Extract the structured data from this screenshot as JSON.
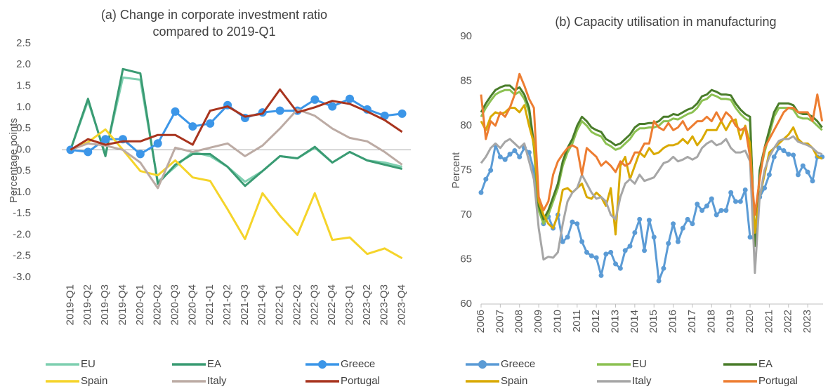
{
  "chart_data": [
    {
      "type": "line",
      "title": [
        "(a) Change in corporate investment ratio",
        "compared to 2019-Q1"
      ],
      "y_label": "Percentage points",
      "categories": [
        "2019-Q1",
        "2019-Q2",
        "2019-Q3",
        "2019-Q4",
        "2020-Q1",
        "2020-Q2",
        "2020-Q3",
        "2020-Q4",
        "2021-Q1",
        "2021-Q2",
        "2021-Q3",
        "2021-Q4",
        "2022-Q1",
        "2022-Q2",
        "2022-Q3",
        "2022-Q4",
        "2023-Q1",
        "2023-Q2",
        "2023-Q3",
        "2023-Q4"
      ],
      "ylim": [
        -3,
        2.5
      ],
      "yticks": [
        {
          "value": -3,
          "label": "-3.0"
        },
        -2.5,
        {
          "value": -2,
          "label": "-2.0"
        },
        -1.5,
        {
          "value": -1,
          "label": "-1.0"
        },
        -0.5,
        {
          "value": 0,
          "label": "0.0"
        },
        0.5,
        {
          "value": 1,
          "label": "1.0"
        },
        1.5,
        {
          "value": 2,
          "label": "2.0"
        },
        2.5
      ],
      "series": [
        {
          "name": "EU",
          "color": "#7fcfb0",
          "values": [
            0,
            1.15,
            -0.1,
            1.7,
            1.65,
            -0.75,
            -0.4,
            -0.05,
            -0.15,
            -0.4,
            -0.75,
            -0.5,
            -0.15,
            -0.2,
            0.05,
            -0.3,
            -0.05,
            -0.25,
            -0.3,
            -0.4
          ]
        },
        {
          "name": "EA",
          "color": "#3a9b73",
          "values": [
            0,
            1.2,
            -0.15,
            1.9,
            1.8,
            -0.8,
            -0.35,
            -0.1,
            -0.1,
            -0.4,
            -0.85,
            -0.5,
            -0.15,
            -0.2,
            0.07,
            -0.3,
            -0.05,
            -0.25,
            -0.35,
            -0.45
          ]
        },
        {
          "name": "Greece",
          "color": "#3c96e8",
          "marker": true,
          "values": [
            0,
            -0.05,
            0.25,
            0.25,
            -0.1,
            0.15,
            0.9,
            0.55,
            0.62,
            1.05,
            0.75,
            0.88,
            0.92,
            0.92,
            1.18,
            1.02,
            1.2,
            0.95,
            0.8,
            0.85
          ]
        },
        {
          "name": "Spain",
          "color": "#f5d42a",
          "values": [
            0,
            0.18,
            0.48,
            0,
            -0.5,
            -0.6,
            -0.25,
            -0.65,
            -0.73,
            -1.4,
            -2.1,
            -1.02,
            -1.55,
            -2.0,
            -1.02,
            -2.12,
            -2.06,
            -2.45,
            -2.32,
            -2.55
          ]
        },
        {
          "name": "Italy",
          "color": "#bcaba4",
          "values": [
            0,
            0.15,
            0.1,
            0,
            -0.3,
            -0.9,
            0.05,
            -0.05,
            0.05,
            0.15,
            -0.15,
            0.1,
            0.5,
            0.95,
            0.8,
            0.5,
            0.28,
            0.2,
            -0.05,
            -0.35
          ]
        },
        {
          "name": "Portugal",
          "color": "#a8341e",
          "values": [
            0,
            0.25,
            0.12,
            0.2,
            0.2,
            0.35,
            0.35,
            0.12,
            0.92,
            1.02,
            0.78,
            0.85,
            1.42,
            0.88,
            1.0,
            1.15,
            1.08,
            0.9,
            0.7,
            0.42
          ]
        }
      ]
    },
    {
      "type": "line",
      "title": [
        "(b) Capacity utilisation in manufacturing"
      ],
      "y_label": "Percent",
      "x": [
        2006,
        2006.25,
        2006.5,
        2006.75,
        2007,
        2007.25,
        2007.5,
        2007.75,
        2008,
        2008.25,
        2008.5,
        2008.75,
        2009,
        2009.25,
        2009.5,
        2009.75,
        2010,
        2010.25,
        2010.5,
        2010.75,
        2011,
        2011.25,
        2011.5,
        2011.75,
        2012,
        2012.25,
        2012.5,
        2012.75,
        2013,
        2013.25,
        2013.5,
        2013.75,
        2014,
        2014.25,
        2014.5,
        2014.75,
        2015,
        2015.25,
        2015.5,
        2015.75,
        2016,
        2016.25,
        2016.5,
        2016.75,
        2017,
        2017.25,
        2017.5,
        2017.75,
        2018,
        2018.25,
        2018.5,
        2018.75,
        2019,
        2019.25,
        2019.5,
        2019.75,
        2020,
        2020.25,
        2020.5,
        2020.75,
        2021,
        2021.25,
        2021.5,
        2021.75,
        2022,
        2022.25,
        2022.5,
        2022.75,
        2023,
        2023.25,
        2023.5,
        2023.75
      ],
      "xlim": [
        2006,
        2023.8
      ],
      "xticks": [
        2006,
        2007,
        2008,
        2009,
        2010,
        2011,
        2012,
        2013,
        2014,
        2015,
        2016,
        2017,
        2018,
        2019,
        2020,
        2021,
        2022,
        2023
      ],
      "ylim": [
        60,
        90
      ],
      "yticks": [
        60,
        65,
        70,
        75,
        80,
        85,
        90
      ],
      "series": [
        {
          "name": "Greece",
          "color": "#5b9bd5",
          "marker": true,
          "values": [
            72.5,
            74,
            75,
            77.8,
            76.5,
            76.2,
            76.8,
            77.2,
            76.5,
            77.5,
            77,
            75,
            71,
            69,
            69.8,
            68.5,
            70,
            67,
            67.5,
            69.2,
            69,
            67,
            65.8,
            65.4,
            65.2,
            63.2,
            65.6,
            65.8,
            64.5,
            64,
            66,
            66.5,
            68,
            69.5,
            66,
            69.4,
            67.5,
            62.6,
            64,
            66.8,
            69,
            67,
            68.5,
            69.5,
            69,
            71.2,
            70.5,
            71,
            71.8,
            70,
            70.5,
            70.5,
            72.5,
            71.5,
            71.5,
            72.8,
            67.5,
            67.3,
            72,
            73,
            74.5,
            76.5,
            77.5,
            77.2,
            76.8,
            76.7,
            74.5,
            75.5,
            74.8,
            73.8,
            76.5,
            76.5
          ]
        },
        {
          "name": "EU",
          "color": "#8cc152",
          "values": [
            81,
            82,
            82.8,
            83.5,
            83.8,
            84,
            84,
            83.5,
            83.8,
            83,
            81.5,
            77.5,
            70.5,
            69,
            70,
            71.5,
            73,
            75.5,
            77,
            78,
            79.5,
            80.5,
            80,
            79.3,
            79,
            78.8,
            78,
            77.7,
            77.3,
            77.5,
            78,
            78.5,
            79.3,
            79.7,
            79.7,
            79.8,
            79.8,
            80,
            80.5,
            80.5,
            80.8,
            80.7,
            81,
            81.3,
            81.5,
            82,
            82.8,
            83,
            83.5,
            83.3,
            83,
            83,
            82.9,
            82,
            81.3,
            80.8,
            80.5,
            67,
            74.5,
            77,
            79,
            81,
            82,
            82,
            82,
            81.8,
            81,
            80.8,
            80.8,
            80.5,
            80,
            79.5
          ]
        },
        {
          "name": "EA",
          "color": "#4a7d2b",
          "values": [
            81.5,
            82.5,
            83.3,
            84,
            84.3,
            84.5,
            84.5,
            84,
            84.3,
            83.5,
            82,
            78,
            71,
            69.5,
            70.5,
            72,
            73.5,
            76,
            77.5,
            78.5,
            80,
            81,
            80.5,
            79.8,
            79.5,
            79.3,
            78.5,
            78.2,
            77.8,
            78,
            78.5,
            79,
            79.8,
            80.2,
            80.2,
            80.3,
            80.3,
            80.5,
            81,
            81,
            81.3,
            81.2,
            81.5,
            81.8,
            82,
            82.5,
            83.3,
            83.5,
            84,
            83.8,
            83.5,
            83.5,
            83.4,
            82.5,
            81.8,
            81.3,
            81,
            66.5,
            75,
            77.5,
            79.5,
            81.5,
            82.5,
            82.5,
            82.5,
            82.3,
            81.5,
            81.3,
            81.3,
            81,
            80.5,
            79.8
          ]
        },
        {
          "name": "Spain",
          "color": "#d9a900",
          "values": [
            80.5,
            79.5,
            81,
            81.5,
            81.3,
            81.5,
            82,
            82,
            81.5,
            82.3,
            80,
            78,
            71.5,
            70,
            69,
            68.5,
            70,
            72.8,
            73,
            72.5,
            73,
            73.5,
            72,
            71.8,
            72.5,
            72,
            71,
            73,
            67.8,
            75.5,
            76.5,
            74,
            75.5,
            77,
            76.5,
            77.5,
            76.8,
            77,
            77.5,
            77.8,
            77.8,
            78,
            78.5,
            78,
            78.8,
            77.8,
            78.5,
            79.5,
            79.5,
            79.5,
            80.5,
            79.5,
            80.5,
            80.7,
            78.5,
            80,
            78,
            68,
            72,
            74.5,
            77,
            77.5,
            78,
            78.5,
            79,
            79.8,
            78.5,
            78,
            78,
            77.5,
            76.5,
            76.3
          ]
        },
        {
          "name": "Italy",
          "color": "#a6a6a6",
          "values": [
            75.8,
            76.5,
            77.5,
            78,
            77.5,
            78.2,
            78.5,
            78,
            77.5,
            78,
            76,
            74,
            68.5,
            65,
            65.3,
            65.2,
            65.8,
            69,
            71.5,
            72.5,
            73,
            74.5,
            73.5,
            72.5,
            71.8,
            72,
            71.5,
            70,
            69.5,
            72,
            73.5,
            74,
            73.5,
            74.5,
            73.8,
            74,
            74.2,
            75,
            75.8,
            76,
            76.5,
            76,
            76.2,
            76.5,
            76.2,
            76.5,
            77.5,
            78,
            78.3,
            77.8,
            78,
            78.5,
            77.5,
            77,
            77,
            77.2,
            76,
            63.5,
            72,
            75,
            76.5,
            77.5,
            78.3,
            78.5,
            78.5,
            78.8,
            78.2,
            78,
            77.8,
            77.5,
            77,
            76.8
          ]
        },
        {
          "name": "Portugal",
          "color": "#ed7d31",
          "values": [
            83.5,
            78.5,
            80.5,
            80,
            81.5,
            81,
            82,
            83.5,
            85.8,
            84.5,
            83,
            82,
            72,
            70.5,
            71.5,
            74.5,
            76,
            76.8,
            77.5,
            77.8,
            77.5,
            74.5,
            77.5,
            77,
            76.5,
            75.5,
            76,
            75.5,
            74.8,
            76,
            75.5,
            75.8,
            77,
            77,
            78,
            78,
            80.5,
            79.8,
            79.5,
            80.3,
            79.5,
            79.8,
            80.5,
            79.5,
            80,
            80.5,
            80.5,
            81,
            80.5,
            81.5,
            80.5,
            81.5,
            81,
            80,
            79.5,
            79.8,
            76.5,
            70,
            74,
            77.5,
            78.5,
            79.5,
            80.5,
            81.5,
            82,
            82,
            81.5,
            81.5,
            81.5,
            80.5,
            83.5,
            80.5
          ]
        }
      ]
    }
  ]
}
